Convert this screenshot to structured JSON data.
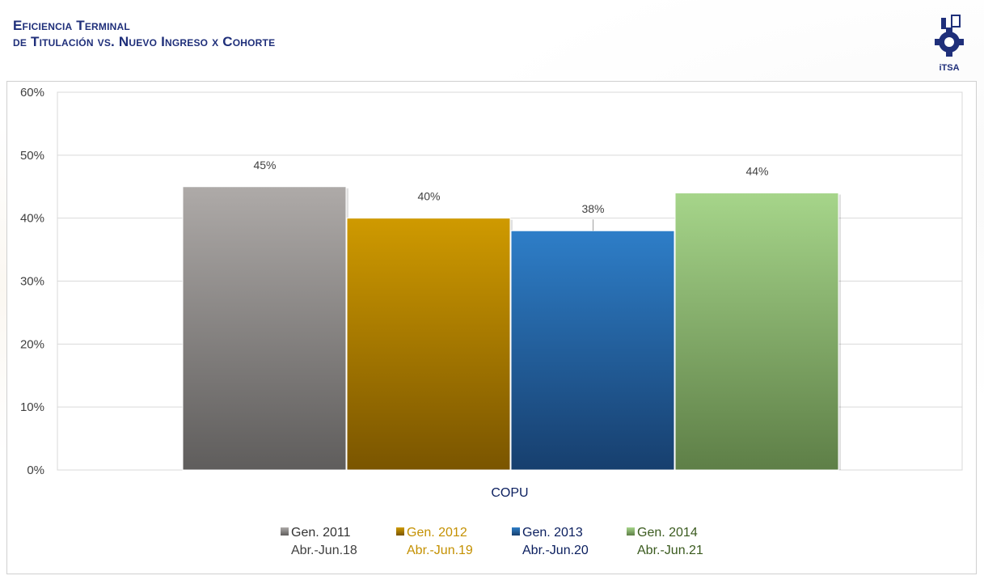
{
  "header": {
    "title_line1": "Eficiencia Terminal",
    "title_line2": "de Titulación vs. Nuevo Ingreso x Cohorte",
    "logo_text": "iTSA",
    "title_color": "#1f2f7a"
  },
  "chart_data": {
    "type": "bar",
    "title": "",
    "xlabel": "",
    "ylabel": "",
    "categories": [
      "COPU"
    ],
    "ylim": [
      0,
      60
    ],
    "yticks": [
      0,
      10,
      20,
      30,
      40,
      50,
      60
    ],
    "ytick_format": "%",
    "grid": true,
    "legend_position": "bottom",
    "series": [
      {
        "name": "Gen. 2011",
        "subtitle": "Abr.-Jun.18",
        "values": [
          45
        ],
        "label": "45%",
        "color_top": "#aeaaa8",
        "color_bottom": "#5f5d5c",
        "legend_color": "#333333"
      },
      {
        "name": "Gen. 2012",
        "subtitle": "Abr.-Jun.19",
        "values": [
          40
        ],
        "label": "40%",
        "color_top": "#cf9a00",
        "color_bottom": "#7a5500",
        "legend_color": "#c49000"
      },
      {
        "name": "Gen. 2013",
        "subtitle": "Abr.-Jun.20",
        "values": [
          38
        ],
        "label": "38%",
        "color_top": "#2e7ec8",
        "color_bottom": "#173f6e",
        "legend_color": "#0a1e5e"
      },
      {
        "name": "Gen. 2014",
        "subtitle": "Abr.-Jun.21",
        "values": [
          44
        ],
        "label": "44%",
        "color_top": "#a6d58a",
        "color_bottom": "#5e7f47",
        "legend_color": "#3a5a1e"
      }
    ]
  }
}
